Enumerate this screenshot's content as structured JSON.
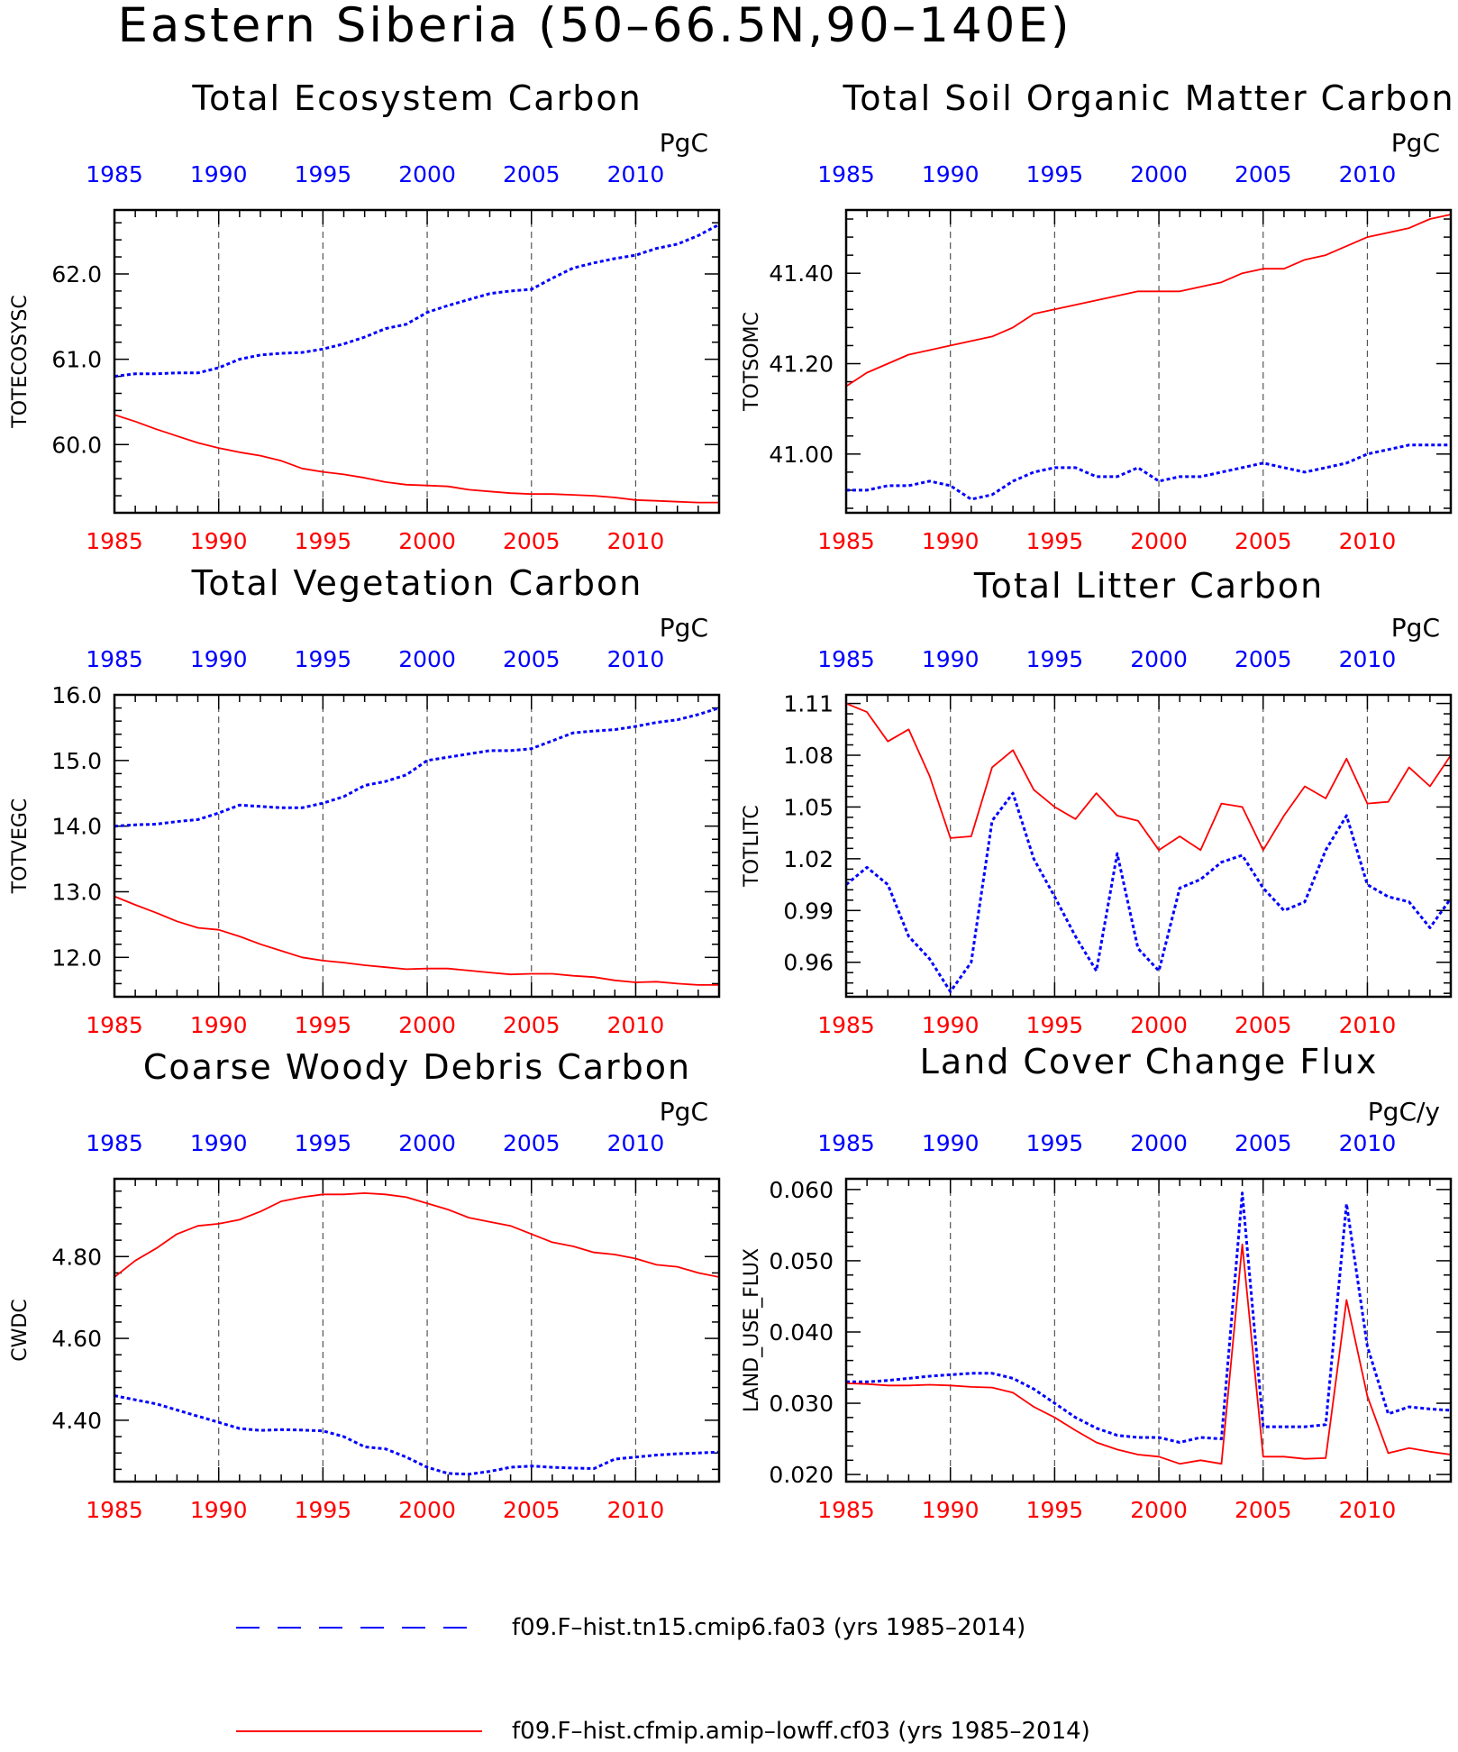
{
  "page_title": "Eastern Siberia (50–66.5N,90–140E)",
  "colors": {
    "case_a": "#0000ff",
    "case_b": "#ff0000",
    "axis": "#000000"
  },
  "legend": {
    "entries": [
      {
        "label": "f09.F–hist.tn15.cmip6.fa03 (yrs 1985–2014)",
        "style": "dashed",
        "color": "#0000ff"
      },
      {
        "label": "f09.F–hist.cfmip.amip–lowff.cf03 (yrs 1985–2014)",
        "style": "solid",
        "color": "#ff0000"
      }
    ]
  },
  "chart_data": [
    {
      "type": "line",
      "title": "Total Ecosystem Carbon",
      "ylabel": "TOTECOSYSC",
      "units": "PgC",
      "xlim": [
        1985,
        2014
      ],
      "ylim": [
        59.2,
        62.75
      ],
      "yticks": [
        60.0,
        61.0,
        62.0
      ],
      "ytick_labels": [
        "60.0",
        "61.0",
        "62.0"
      ],
      "xticks": [
        1985,
        1990,
        1995,
        2000,
        2005,
        2010
      ],
      "grid": "vertical dashed",
      "x": [
        1985,
        1986,
        1987,
        1988,
        1989,
        1990,
        1991,
        1992,
        1993,
        1994,
        1995,
        1996,
        1997,
        1998,
        1999,
        2000,
        2001,
        2002,
        2003,
        2004,
        2005,
        2006,
        2007,
        2008,
        2009,
        2010,
        2011,
        2012,
        2013,
        2014
      ],
      "series": [
        {
          "style": "dashed",
          "color": "#0000ff",
          "values": [
            60.8,
            60.83,
            60.83,
            60.84,
            60.84,
            60.9,
            61.0,
            61.05,
            61.07,
            61.08,
            61.12,
            61.18,
            61.26,
            61.36,
            61.41,
            61.55,
            61.63,
            61.7,
            61.77,
            61.8,
            61.82,
            61.95,
            62.07,
            62.13,
            62.18,
            62.22,
            62.3,
            62.35,
            62.45,
            62.58
          ]
        },
        {
          "style": "solid",
          "color": "#ff0000",
          "values": [
            60.35,
            60.27,
            60.18,
            60.1,
            60.02,
            59.96,
            59.91,
            59.87,
            59.81,
            59.72,
            59.68,
            59.65,
            59.61,
            59.56,
            59.53,
            59.52,
            59.51,
            59.47,
            59.45,
            59.43,
            59.42,
            59.42,
            59.41,
            59.4,
            59.38,
            59.35,
            59.34,
            59.33,
            59.32,
            59.32
          ]
        }
      ]
    },
    {
      "type": "line",
      "title": "Total Soil Organic Matter Carbon",
      "ylabel": "TOTSOMC",
      "units": "PgC",
      "xlim": [
        1985,
        2014
      ],
      "ylim": [
        40.87,
        41.54
      ],
      "yticks": [
        41.0,
        41.2,
        41.4
      ],
      "ytick_labels": [
        "41.00",
        "41.20",
        "41.40"
      ],
      "xticks": [
        1985,
        1990,
        1995,
        2000,
        2005,
        2010
      ],
      "grid": "vertical dashed",
      "x": [
        1985,
        1986,
        1987,
        1988,
        1989,
        1990,
        1991,
        1992,
        1993,
        1994,
        1995,
        1996,
        1997,
        1998,
        1999,
        2000,
        2001,
        2002,
        2003,
        2004,
        2005,
        2006,
        2007,
        2008,
        2009,
        2010,
        2011,
        2012,
        2013,
        2014
      ],
      "series": [
        {
          "style": "dashed",
          "color": "#0000ff",
          "values": [
            40.92,
            40.92,
            40.93,
            40.93,
            40.94,
            40.93,
            40.9,
            40.91,
            40.94,
            40.96,
            40.97,
            40.97,
            40.95,
            40.95,
            40.97,
            40.94,
            40.95,
            40.95,
            40.96,
            40.97,
            40.98,
            40.97,
            40.96,
            40.97,
            40.98,
            41.0,
            41.01,
            41.02,
            41.02,
            41.02
          ]
        },
        {
          "style": "solid",
          "color": "#ff0000",
          "values": [
            41.15,
            41.18,
            41.2,
            41.22,
            41.23,
            41.24,
            41.25,
            41.26,
            41.28,
            41.31,
            41.32,
            41.33,
            41.34,
            41.35,
            41.36,
            41.36,
            41.36,
            41.37,
            41.38,
            41.4,
            41.41,
            41.41,
            41.43,
            41.44,
            41.46,
            41.48,
            41.49,
            41.5,
            41.52,
            41.53
          ]
        }
      ]
    },
    {
      "type": "line",
      "title": "Total Vegetation Carbon",
      "ylabel": "TOTVEGC",
      "units": "PgC",
      "xlim": [
        1985,
        2014
      ],
      "ylim": [
        11.4,
        16.0
      ],
      "yticks": [
        12.0,
        13.0,
        14.0,
        15.0,
        16.0
      ],
      "ytick_labels": [
        "12.0",
        "13.0",
        "14.0",
        "15.0",
        "16.0"
      ],
      "xticks": [
        1985,
        1990,
        1995,
        2000,
        2005,
        2010
      ],
      "grid": "vertical dashed",
      "x": [
        1985,
        1986,
        1987,
        1988,
        1989,
        1990,
        1991,
        1992,
        1993,
        1994,
        1995,
        1996,
        1997,
        1998,
        1999,
        2000,
        2001,
        2002,
        2003,
        2004,
        2005,
        2006,
        2007,
        2008,
        2009,
        2010,
        2011,
        2012,
        2013,
        2014
      ],
      "series": [
        {
          "style": "dashed",
          "color": "#0000ff",
          "values": [
            14.0,
            14.02,
            14.03,
            14.07,
            14.1,
            14.2,
            14.32,
            14.3,
            14.28,
            14.28,
            14.35,
            14.45,
            14.62,
            14.68,
            14.78,
            15.0,
            15.05,
            15.1,
            15.15,
            15.15,
            15.18,
            15.3,
            15.42,
            15.45,
            15.47,
            15.52,
            15.58,
            15.62,
            15.7,
            15.8
          ]
        },
        {
          "style": "solid",
          "color": "#ff0000",
          "values": [
            12.93,
            12.8,
            12.68,
            12.55,
            12.45,
            12.42,
            12.32,
            12.2,
            12.1,
            12.0,
            11.95,
            11.92,
            11.88,
            11.85,
            11.82,
            11.83,
            11.83,
            11.8,
            11.77,
            11.74,
            11.75,
            11.75,
            11.72,
            11.7,
            11.65,
            11.62,
            11.63,
            11.6,
            11.58,
            11.58
          ]
        }
      ]
    },
    {
      "type": "line",
      "title": "Total Litter Carbon",
      "ylabel": "TOTLITC",
      "units": "PgC",
      "xlim": [
        1985,
        2014
      ],
      "ylim": [
        0.94,
        1.115
      ],
      "yticks": [
        0.96,
        0.99,
        1.02,
        1.05,
        1.08,
        1.11
      ],
      "ytick_labels": [
        "0.96",
        "0.99",
        "1.02",
        "1.05",
        "1.08",
        "1.11"
      ],
      "xticks": [
        1985,
        1990,
        1995,
        2000,
        2005,
        2010
      ],
      "grid": "vertical dashed",
      "x": [
        1985,
        1986,
        1987,
        1988,
        1989,
        1990,
        1991,
        1992,
        1993,
        1994,
        1995,
        1996,
        1997,
        1998,
        1999,
        2000,
        2001,
        2002,
        2003,
        2004,
        2005,
        2006,
        2007,
        2008,
        2009,
        2010,
        2011,
        2012,
        2013,
        2014
      ],
      "series": [
        {
          "style": "dashed",
          "color": "#0000ff",
          "values": [
            1.005,
            1.015,
            1.005,
            0.975,
            0.962,
            0.943,
            0.96,
            1.042,
            1.058,
            1.02,
            0.998,
            0.975,
            0.955,
            1.023,
            0.968,
            0.955,
            1.003,
            1.008,
            1.018,
            1.022,
            1.003,
            0.99,
            0.995,
            1.025,
            1.045,
            1.005,
            0.998,
            0.995,
            0.98,
            0.997
          ]
        },
        {
          "style": "solid",
          "color": "#ff0000",
          "values": [
            1.11,
            1.105,
            1.088,
            1.095,
            1.068,
            1.032,
            1.033,
            1.073,
            1.083,
            1.06,
            1.05,
            1.043,
            1.058,
            1.045,
            1.042,
            1.025,
            1.033,
            1.025,
            1.052,
            1.05,
            1.025,
            1.045,
            1.062,
            1.055,
            1.078,
            1.052,
            1.053,
            1.073,
            1.062,
            1.08
          ]
        }
      ]
    },
    {
      "type": "line",
      "title": "Coarse Woody Debris Carbon",
      "ylabel": "CWDC",
      "units": "PgC",
      "xlim": [
        1985,
        2014
      ],
      "ylim": [
        4.25,
        4.99
      ],
      "yticks": [
        4.4,
        4.6,
        4.8
      ],
      "ytick_labels": [
        "4.40",
        "4.60",
        "4.80"
      ],
      "xticks": [
        1985,
        1990,
        1995,
        2000,
        2005,
        2010
      ],
      "grid": "vertical dashed",
      "x": [
        1985,
        1986,
        1987,
        1988,
        1989,
        1990,
        1991,
        1992,
        1993,
        1994,
        1995,
        1996,
        1997,
        1998,
        1999,
        2000,
        2001,
        2002,
        2003,
        2004,
        2005,
        2006,
        2007,
        2008,
        2009,
        2010,
        2011,
        2012,
        2013,
        2014
      ],
      "series": [
        {
          "style": "dashed",
          "color": "#0000ff",
          "values": [
            4.46,
            4.45,
            4.44,
            4.425,
            4.41,
            4.395,
            4.38,
            4.375,
            4.377,
            4.376,
            4.374,
            4.36,
            4.335,
            4.33,
            4.31,
            4.285,
            4.27,
            4.268,
            4.275,
            4.285,
            4.288,
            4.285,
            4.283,
            4.282,
            4.305,
            4.31,
            4.315,
            4.318,
            4.32,
            4.322
          ]
        },
        {
          "style": "solid",
          "color": "#ff0000",
          "values": [
            4.75,
            4.79,
            4.82,
            4.855,
            4.875,
            4.88,
            4.89,
            4.91,
            4.935,
            4.945,
            4.952,
            4.952,
            4.955,
            4.952,
            4.945,
            4.93,
            4.915,
            4.895,
            4.885,
            4.875,
            4.855,
            4.835,
            4.825,
            4.81,
            4.805,
            4.795,
            4.78,
            4.775,
            4.76,
            4.75
          ]
        }
      ]
    },
    {
      "type": "line",
      "title": "Land Cover Change Flux",
      "ylabel": "LAND_USE_FLUX",
      "units": "PgC/y",
      "xlim": [
        1985,
        2014
      ],
      "ylim": [
        0.019,
        0.0615
      ],
      "yticks": [
        0.02,
        0.03,
        0.04,
        0.05,
        0.06
      ],
      "ytick_labels": [
        "0.020",
        "0.030",
        "0.040",
        "0.050",
        "0.060"
      ],
      "xticks": [
        1985,
        1990,
        1995,
        2000,
        2005,
        2010
      ],
      "grid": "vertical dashed",
      "x": [
        1985,
        1986,
        1987,
        1988,
        1989,
        1990,
        1991,
        1992,
        1993,
        1994,
        1995,
        1996,
        1997,
        1998,
        1999,
        2000,
        2001,
        2002,
        2003,
        2004,
        2005,
        2006,
        2007,
        2008,
        2009,
        2010,
        2011,
        2012,
        2013,
        2014
      ],
      "series": [
        {
          "style": "dashed",
          "color": "#0000ff",
          "values": [
            0.033,
            0.033,
            0.0332,
            0.0335,
            0.0338,
            0.034,
            0.0342,
            0.0342,
            0.0335,
            0.032,
            0.03,
            0.028,
            0.0265,
            0.0255,
            0.0252,
            0.0252,
            0.0245,
            0.0252,
            0.025,
            0.0595,
            0.0267,
            0.0267,
            0.0267,
            0.027,
            0.058,
            0.038,
            0.0285,
            0.0295,
            0.0292,
            0.029
          ]
        },
        {
          "style": "solid",
          "color": "#ff0000",
          "values": [
            0.0328,
            0.0327,
            0.0325,
            0.0325,
            0.0326,
            0.0325,
            0.0323,
            0.0322,
            0.0315,
            0.0295,
            0.028,
            0.0262,
            0.0245,
            0.0235,
            0.0228,
            0.0225,
            0.0215,
            0.022,
            0.0215,
            0.0523,
            0.0225,
            0.0225,
            0.0222,
            0.0223,
            0.0445,
            0.031,
            0.023,
            0.0237,
            0.0232,
            0.0228
          ]
        }
      ]
    }
  ]
}
